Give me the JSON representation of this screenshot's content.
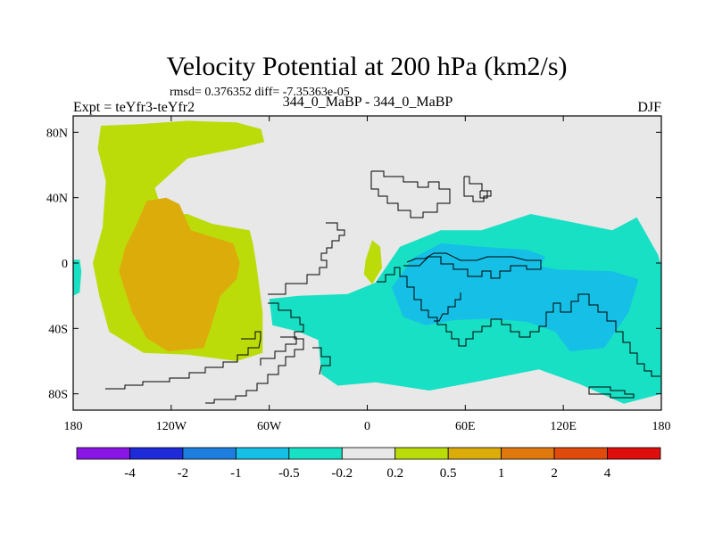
{
  "chart_data": {
    "type": "contour-map",
    "title": "Velocity Potential at 200 hPa (km2/s)",
    "stats": "rmsd= 0.376352 diff= -7.35363e-05",
    "experiment": "Expt = teYfr3-teYfr2",
    "subtitle": "344_0_MaBP - 344_0_MaBP",
    "season": "DJF",
    "x_ticks": [
      "180",
      "120W",
      "60W",
      "0",
      "60E",
      "120E",
      "180"
    ],
    "x_tick_values": [
      -180,
      -120,
      -60,
      0,
      60,
      120,
      180
    ],
    "y_ticks": [
      "80N",
      "40N",
      "0",
      "40S",
      "80S"
    ],
    "y_tick_values": [
      80,
      40,
      0,
      -40,
      -80
    ],
    "xlim": [
      -180,
      180
    ],
    "ylim": [
      -90,
      90
    ],
    "colorbar": {
      "labels": [
        "-4",
        "-2",
        "-1",
        "-0.5",
        "-0.2",
        "0.2",
        "0.5",
        "1",
        "2",
        "4"
      ],
      "colors": [
        "#8a16e6",
        "#1f2ad9",
        "#1d7ee0",
        "#16bfe6",
        "#17e0c4",
        "#e8e8e8",
        "#bcdc0a",
        "#dcac0b",
        "#e0780e",
        "#e04a0c",
        "#e00d0d"
      ]
    },
    "regions": [
      {
        "name": "pacific-positive-0.2-0.5",
        "level": "0.2 to 0.5",
        "color": "#bcdc0a",
        "points": [
          [
            -163,
            84
          ],
          [
            -140,
            85
          ],
          [
            -110,
            87
          ],
          [
            -80,
            86
          ],
          [
            -65,
            82
          ],
          [
            -63,
            74
          ],
          [
            -80,
            70
          ],
          [
            -110,
            64
          ],
          [
            -130,
            46
          ],
          [
            -125,
            30
          ],
          [
            -110,
            30
          ],
          [
            -95,
            24
          ],
          [
            -72,
            20
          ],
          [
            -70,
            12
          ],
          [
            -68,
            0
          ],
          [
            -66,
            -15
          ],
          [
            -64,
            -30
          ],
          [
            -64,
            -55
          ],
          [
            -80,
            -60
          ],
          [
            -110,
            -56
          ],
          [
            -137,
            -55
          ],
          [
            -158,
            -42
          ],
          [
            -164,
            -20
          ],
          [
            -168,
            0
          ],
          [
            -162,
            22
          ],
          [
            -160,
            50
          ],
          [
            -165,
            70
          ]
        ]
      },
      {
        "name": "pacific-positive-0.5-1",
        "level": "0.5 to 1",
        "color": "#dcac0b",
        "points": [
          [
            -135,
            38
          ],
          [
            -123,
            40
          ],
          [
            -115,
            36
          ],
          [
            -108,
            20
          ],
          [
            -95,
            16
          ],
          [
            -82,
            12
          ],
          [
            -78,
            0
          ],
          [
            -80,
            -10
          ],
          [
            -90,
            -20
          ],
          [
            -96,
            -40
          ],
          [
            -100,
            -52
          ],
          [
            -122,
            -54
          ],
          [
            -135,
            -46
          ],
          [
            -144,
            -30
          ],
          [
            -152,
            -5
          ],
          [
            -148,
            10
          ],
          [
            -142,
            22
          ]
        ]
      },
      {
        "name": "atlantic-positive-0.2-0.5",
        "level": "0.2 to 0.5",
        "color": "#bcdc0a",
        "points": [
          [
            3,
            14
          ],
          [
            8,
            10
          ],
          [
            9,
            -3
          ],
          [
            3,
            -13
          ],
          [
            -2,
            -7
          ],
          [
            -1,
            2
          ]
        ]
      },
      {
        "name": "indo-pacific-negative-0.2-0.5",
        "level": "-0.2 to -0.5",
        "color": "#17e0c4",
        "points": [
          [
            -60,
            -22
          ],
          [
            -42,
            -20
          ],
          [
            -12,
            -19
          ],
          [
            5,
            -12
          ],
          [
            20,
            10
          ],
          [
            45,
            20
          ],
          [
            70,
            20
          ],
          [
            100,
            30
          ],
          [
            120,
            26
          ],
          [
            150,
            20
          ],
          [
            165,
            28
          ],
          [
            178,
            5
          ],
          [
            180,
            -2
          ],
          [
            180,
            -80
          ],
          [
            157,
            -86
          ],
          [
            130,
            -74
          ],
          [
            105,
            -65
          ],
          [
            70,
            -72
          ],
          [
            38,
            -78
          ],
          [
            5,
            -73
          ],
          [
            -18,
            -75
          ],
          [
            -28,
            -68
          ],
          [
            -30,
            -47
          ],
          [
            -42,
            -42
          ],
          [
            -58,
            -38
          ]
        ]
      },
      {
        "name": "indo-pacific-negative-0.5-1",
        "level": "-0.5 to -1",
        "color": "#16bfe6",
        "points": [
          [
            15,
            -15
          ],
          [
            28,
            3
          ],
          [
            45,
            12
          ],
          [
            70,
            10
          ],
          [
            98,
            8
          ],
          [
            109,
            4
          ],
          [
            106,
            -2
          ],
          [
            116,
            -4
          ],
          [
            150,
            -5
          ],
          [
            166,
            -10
          ],
          [
            160,
            -30
          ],
          [
            145,
            -52
          ],
          [
            124,
            -54
          ],
          [
            115,
            -42
          ],
          [
            98,
            -36
          ],
          [
            76,
            -34
          ],
          [
            52,
            -35
          ],
          [
            36,
            -38
          ],
          [
            22,
            -33
          ]
        ]
      },
      {
        "name": "western-edge-negative",
        "level": "-0.2 to -0.5",
        "color": "#17e0c4",
        "points": [
          [
            -180,
            2
          ],
          [
            -176,
            2
          ],
          [
            -175,
            -5
          ],
          [
            -176,
            -18
          ],
          [
            -180,
            -20
          ]
        ]
      }
    ]
  }
}
